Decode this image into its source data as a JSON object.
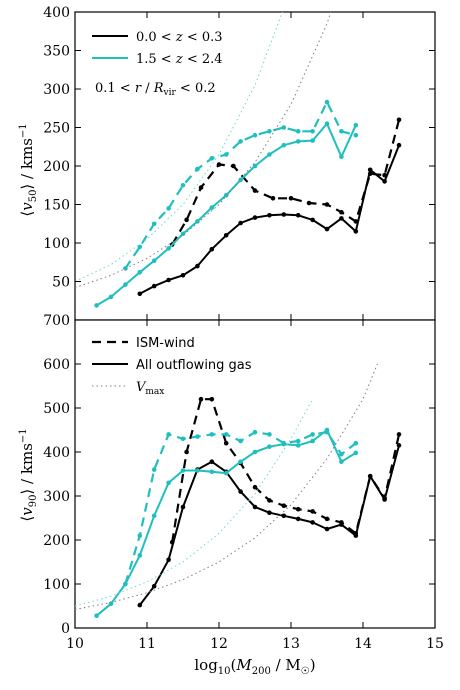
{
  "colors": {
    "low_z": "#000000",
    "high_z": "#1fbfbf",
    "vmax_low": "#7f7f7f",
    "vmax_high": "#66d9d9"
  },
  "chart_data": [
    {
      "type": "line",
      "ylabel": "⟨v₅₀⟩ / kms⁻¹",
      "ylim": [
        0,
        400
      ],
      "yticks": [
        "50",
        "100",
        "150",
        "200",
        "250",
        "300",
        "350",
        "400"
      ],
      "xlim": [
        10,
        15
      ],
      "legend": {
        "placement": "top-left",
        "entries": [
          "0.0 < z < 0.3",
          "1.5 < z < 2.4"
        ]
      },
      "annotation": "0.1 < r / R_vir < 0.2",
      "series": [
        {
          "name": "0.0 < z < 0.3",
          "style": "dashed",
          "x": [
            11.35,
            11.55,
            11.75,
            12.0,
            12.2,
            12.5,
            12.75,
            13.0,
            13.25,
            13.5,
            13.7,
            13.9,
            14.1,
            14.3,
            14.5
          ],
          "y": [
            98,
            130,
            172,
            202,
            200,
            168,
            158,
            158,
            152,
            150,
            140,
            128,
            190,
            188,
            260
          ]
        },
        {
          "name": "0.0 < z < 0.3",
          "style": "solid",
          "x": [
            10.9,
            11.1,
            11.3,
            11.5,
            11.7,
            11.9,
            12.1,
            12.3,
            12.5,
            12.7,
            12.9,
            13.1,
            13.3,
            13.5,
            13.7,
            13.9,
            14.1,
            14.3,
            14.5
          ],
          "y": [
            34,
            44,
            52,
            58,
            70,
            92,
            110,
            126,
            133,
            136,
            137,
            136,
            130,
            118,
            132,
            115,
            195,
            180,
            227
          ]
        },
        {
          "name": "1.5 < z < 2.4",
          "style": "dashed",
          "x": [
            10.7,
            10.9,
            11.1,
            11.3,
            11.5,
            11.7,
            11.9,
            12.1,
            12.3,
            12.5,
            12.7,
            12.9,
            13.1,
            13.3,
            13.5,
            13.7,
            13.9
          ],
          "y": [
            67,
            95,
            125,
            145,
            175,
            196,
            210,
            215,
            232,
            240,
            245,
            250,
            245,
            245,
            283,
            245,
            240
          ]
        },
        {
          "name": "1.5 < z < 2.4",
          "style": "solid",
          "x": [
            10.3,
            10.5,
            10.7,
            10.9,
            11.1,
            11.3,
            11.5,
            11.7,
            11.9,
            12.1,
            12.3,
            12.5,
            12.7,
            12.9,
            13.1,
            13.3,
            13.5,
            13.7,
            13.9
          ],
          "y": [
            19,
            30,
            46,
            62,
            77,
            93,
            112,
            128,
            146,
            162,
            182,
            200,
            215,
            227,
            232,
            233,
            255,
            212,
            253
          ]
        },
        {
          "name": "V_max 0.0 < z < 0.3",
          "style": "dotted",
          "x": [
            10.0,
            10.5,
            11.0,
            11.5,
            12.0,
            12.5,
            13.0,
            13.5,
            13.8
          ],
          "y": [
            42,
            58,
            80,
            110,
            150,
            205,
            280,
            385,
            470
          ]
        },
        {
          "name": "V_max 1.5 < z < 2.4",
          "style": "dotted",
          "x": [
            10.0,
            10.5,
            11.0,
            11.5,
            12.0,
            12.5,
            13.0
          ],
          "y": [
            50,
            72,
            105,
            150,
            215,
            305,
            430
          ]
        }
      ]
    },
    {
      "type": "line",
      "xlabel": "log₁₀(M₂₀₀ / M☉)",
      "ylabel": "⟨v₉₀⟩ / kms⁻¹",
      "ylim": [
        0,
        700
      ],
      "yticks": [
        "0",
        "100",
        "200",
        "300",
        "400",
        "500",
        "600",
        "700"
      ],
      "xlim": [
        10,
        15
      ],
      "xticks": [
        "10",
        "11",
        "12",
        "13",
        "14",
        "15"
      ],
      "legend": {
        "placement": "top-left",
        "entries": [
          "ISM-wind",
          "All outflowing gas",
          "V_max"
        ]
      },
      "series": [
        {
          "name": "ISM-wind",
          "style": "dashed",
          "x": [
            11.35,
            11.55,
            11.75,
            11.9,
            12.1,
            12.3,
            12.5,
            12.7,
            12.9,
            13.1,
            13.3,
            13.5,
            13.7,
            13.9,
            14.1,
            14.3,
            14.5
          ],
          "y": [
            195,
            400,
            520,
            520,
            420,
            375,
            320,
            290,
            278,
            270,
            265,
            248,
            240,
            215,
            345,
            295,
            440
          ]
        },
        {
          "name": "All outflowing gas",
          "style": "solid",
          "x": [
            10.9,
            11.1,
            11.3,
            11.5,
            11.7,
            11.9,
            12.1,
            12.3,
            12.5,
            12.7,
            12.9,
            13.1,
            13.3,
            13.5,
            13.7,
            13.9,
            14.1,
            14.3,
            14.5
          ],
          "y": [
            52,
            95,
            155,
            275,
            360,
            378,
            355,
            310,
            275,
            262,
            255,
            248,
            240,
            225,
            235,
            210,
            345,
            292,
            415
          ]
        },
        {
          "name": "ISM-wind high z",
          "style": "dashed",
          "x": [
            10.7,
            10.9,
            11.1,
            11.3,
            11.5,
            11.7,
            11.9,
            12.1,
            12.3,
            12.5,
            12.7,
            12.9,
            13.1,
            13.3,
            13.5,
            13.7,
            13.9
          ],
          "y": [
            100,
            210,
            360,
            440,
            430,
            435,
            440,
            440,
            425,
            445,
            440,
            420,
            425,
            440,
            445,
            395,
            420
          ]
        },
        {
          "name": "All outflowing gas high z",
          "style": "solid",
          "x": [
            10.3,
            10.5,
            10.7,
            10.9,
            11.1,
            11.3,
            11.5,
            11.7,
            11.9,
            12.1,
            12.3,
            12.5,
            12.7,
            12.9,
            13.1,
            13.3,
            13.5,
            13.7,
            13.9
          ],
          "y": [
            28,
            55,
            100,
            165,
            255,
            330,
            358,
            358,
            355,
            352,
            378,
            400,
            412,
            418,
            415,
            425,
            450,
            378,
            398
          ]
        },
        {
          "name": "V_max",
          "style": "dotted",
          "x": [
            10.0,
            10.5,
            11.0,
            11.5,
            12.0,
            12.5,
            13.0,
            13.5,
            14.0,
            14.2
          ],
          "y": [
            42,
            58,
            80,
            110,
            150,
            205,
            280,
            385,
            520,
            600
          ]
        },
        {
          "name": "V_max high z",
          "style": "dotted",
          "x": [
            10.0,
            10.5,
            11.0,
            11.5,
            12.0,
            12.5,
            13.0,
            13.3
          ],
          "y": [
            50,
            72,
            105,
            150,
            215,
            305,
            430,
            520
          ]
        }
      ]
    }
  ]
}
